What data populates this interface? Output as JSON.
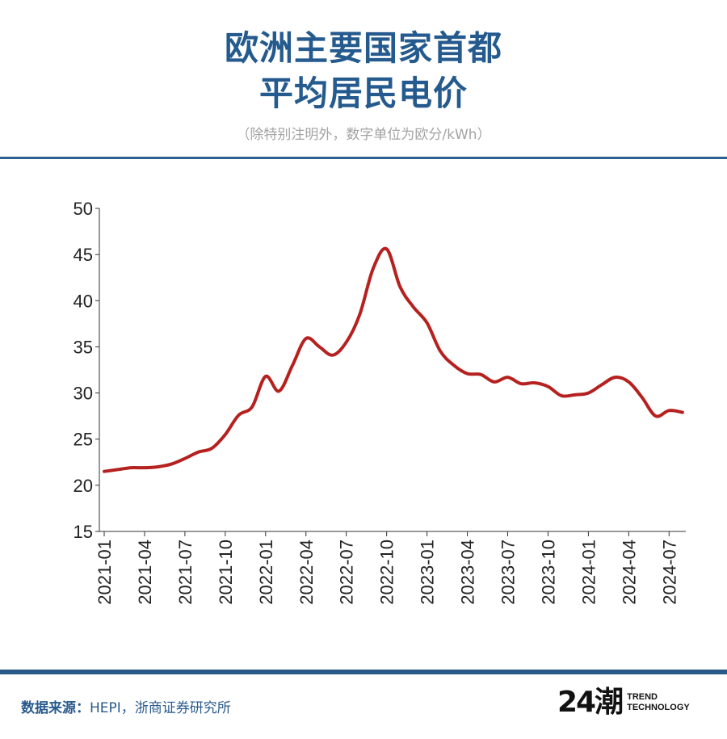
{
  "header": {
    "title_line1": "欧洲主要国家首都",
    "title_line2": "平均居民电价",
    "subtitle": "（除特别注明外，数字单位为欧分/kWh）"
  },
  "footer": {
    "source_label": "数据来源：",
    "source_text": "HEPI，浙商证券研究所",
    "logo_mark": "24潮",
    "logo_line1": "TREND",
    "logo_line2": "TECHNOLOGY"
  },
  "colors": {
    "title": "#245a8d",
    "line": "#b5211f",
    "axis": "#333333",
    "rule": "#2f5f8f"
  },
  "chart_data": {
    "type": "line",
    "title": "欧洲主要国家首都平均居民电价",
    "xlabel": "",
    "ylabel": "欧分/kWh",
    "ylim": [
      15,
      50
    ],
    "yticks": [
      15,
      20,
      25,
      30,
      35,
      40,
      45,
      50
    ],
    "xticks": [
      "2021-01",
      "2021-04",
      "2021-07",
      "2021-10",
      "2022-01",
      "2022-04",
      "2022-07",
      "2022-10",
      "2023-01",
      "2023-04",
      "2023-07",
      "2023-10",
      "2024-01",
      "2024-04",
      "2024-07"
    ],
    "x_start": "2021-01",
    "series": [
      {
        "name": "平均居民电价",
        "values": [
          21.5,
          21.7,
          21.9,
          21.9,
          22.0,
          22.3,
          22.9,
          23.6,
          24.0,
          25.5,
          27.6,
          28.5,
          31.8,
          30.2,
          33.0,
          35.9,
          35.0,
          34.1,
          35.5,
          38.5,
          43.5,
          45.6,
          41.5,
          39.3,
          37.6,
          34.5,
          33.0,
          32.1,
          32.0,
          31.2,
          31.7,
          31.0,
          31.1,
          30.7,
          29.7,
          29.8,
          30.0,
          30.9,
          31.7,
          31.2,
          29.5,
          27.5,
          28.1,
          27.9
        ]
      }
    ]
  }
}
